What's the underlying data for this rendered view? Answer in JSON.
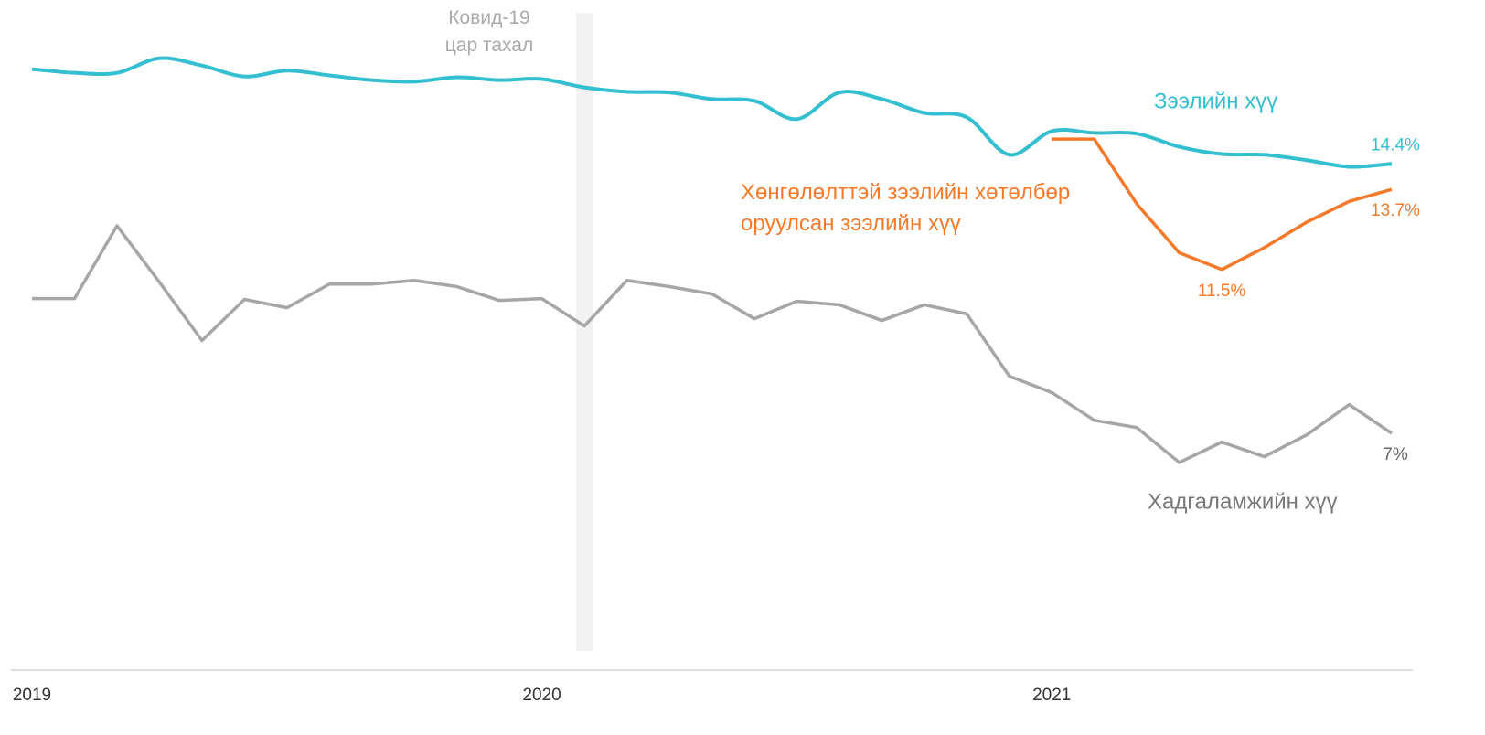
{
  "chart_data": {
    "type": "line",
    "categories": [
      "2019",
      null,
      null,
      null,
      null,
      null,
      null,
      null,
      null,
      null,
      null,
      null,
      "2020",
      null,
      null,
      null,
      null,
      null,
      null,
      null,
      null,
      null,
      null,
      null,
      "2021",
      null,
      null,
      null,
      null,
      null,
      null,
      null,
      null
    ],
    "ylim": [
      0.5,
      18.9
    ],
    "series": [
      {
        "name": "Зээлийн хүү",
        "color": "#33bfcf",
        "smooth": true,
        "values": [
          17.0,
          16.9,
          16.9,
          17.3,
          17.1,
          16.8,
          16.96,
          16.83,
          16.7,
          16.66,
          16.78,
          16.7,
          16.73,
          16.5,
          16.38,
          16.36,
          16.18,
          16.13,
          15.63,
          16.36,
          16.18,
          15.8,
          15.68,
          14.65,
          15.3,
          15.25,
          15.23,
          14.87,
          14.67,
          14.65,
          14.5,
          14.32,
          14.4
        ],
        "value_labels": [
          null,
          null,
          null,
          null,
          null,
          null,
          null,
          null,
          null,
          null,
          null,
          null,
          null,
          null,
          null,
          null,
          null,
          null,
          null,
          null,
          null,
          null,
          null,
          null,
          null,
          null,
          null,
          null,
          null,
          null,
          null,
          null,
          "14.4%"
        ]
      },
      {
        "name": "Хөнгөлөлттэй зээлийн хөтөлбөр\nоруулсан зээлийн хүү",
        "color": "#f47a2a",
        "smooth": false,
        "values": [
          null,
          null,
          null,
          null,
          null,
          null,
          null,
          null,
          null,
          null,
          null,
          null,
          null,
          null,
          null,
          null,
          null,
          null,
          null,
          null,
          null,
          null,
          null,
          null,
          15.08,
          15.08,
          13.3,
          11.96,
          11.5,
          12.1,
          12.8,
          13.37,
          13.7
        ],
        "value_labels": [
          null,
          null,
          null,
          null,
          null,
          null,
          null,
          null,
          null,
          null,
          null,
          null,
          null,
          null,
          null,
          null,
          null,
          null,
          null,
          null,
          null,
          null,
          null,
          null,
          null,
          null,
          null,
          null,
          "11.5%",
          null,
          null,
          null,
          "13.7%"
        ]
      },
      {
        "name": "Хадгаламжийн хүү",
        "color": "#a6a6a6",
        "smooth": false,
        "values": [
          10.7,
          10.7,
          12.7,
          11.15,
          9.55,
          10.68,
          10.45,
          11.1,
          11.1,
          11.2,
          11.03,
          10.65,
          10.7,
          9.95,
          11.2,
          11.03,
          10.83,
          10.15,
          10.63,
          10.53,
          10.1,
          10.53,
          10.28,
          8.57,
          8.12,
          7.36,
          7.16,
          6.2,
          6.76,
          6.36,
          6.96,
          7.79,
          7.0
        ],
        "value_labels": [
          null,
          null,
          null,
          null,
          null,
          null,
          null,
          null,
          null,
          null,
          null,
          null,
          null,
          null,
          null,
          null,
          null,
          null,
          null,
          null,
          null,
          null,
          null,
          null,
          null,
          null,
          null,
          null,
          null,
          null,
          null,
          null,
          "7%"
        ]
      }
    ],
    "annotations": [
      {
        "text": "Ковид-19\nцар тахал",
        "x": 13
      }
    ]
  }
}
